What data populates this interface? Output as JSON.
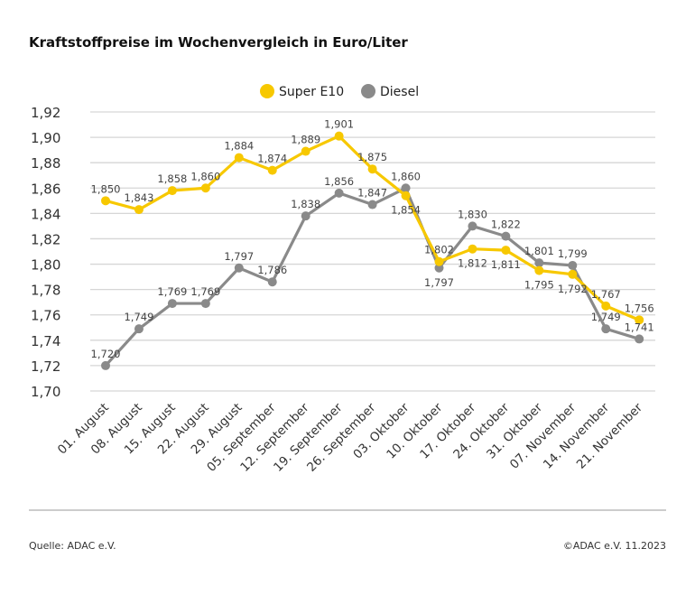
{
  "chart_data": {
    "type": "line",
    "title": "Kraftstoffpreise im Wochenvergleich in Euro/Liter",
    "categories": [
      "01. August",
      "08. August",
      "15. August",
      "22. August",
      "29. August",
      "05. September",
      "12. September",
      "19. September",
      "26. September",
      "03. Oktober",
      "10. Oktober",
      "17. Oktober",
      "24. Oktober",
      "31. Oktober",
      "07. November",
      "14. November",
      "21. November"
    ],
    "series": [
      {
        "name": "Super E10",
        "color": "#f7c800",
        "values": [
          1.85,
          1.843,
          1.858,
          1.86,
          1.884,
          1.874,
          1.889,
          1.901,
          1.875,
          1.854,
          1.802,
          1.812,
          1.811,
          1.795,
          1.792,
          1.767,
          1.756
        ]
      },
      {
        "name": "Diesel",
        "color": "#8a8a8a",
        "values": [
          1.72,
          1.749,
          1.769,
          1.769,
          1.797,
          1.786,
          1.838,
          1.856,
          1.847,
          1.86,
          1.797,
          1.83,
          1.822,
          1.801,
          1.799,
          1.749,
          1.741
        ]
      }
    ],
    "ylim": [
      1.7,
      1.92
    ],
    "yticks": [
      "1,70",
      "1,72",
      "1,74",
      "1,76",
      "1,78",
      "1,80",
      "1,82",
      "1,84",
      "1,86",
      "1,88",
      "1,90",
      "1,92"
    ],
    "grid": true,
    "legend": "top-center",
    "decimal_separator": ","
  },
  "footer": {
    "source": "Quelle: ADAC e.V.",
    "copyright": "©ADAC e.V. 11.2023"
  }
}
